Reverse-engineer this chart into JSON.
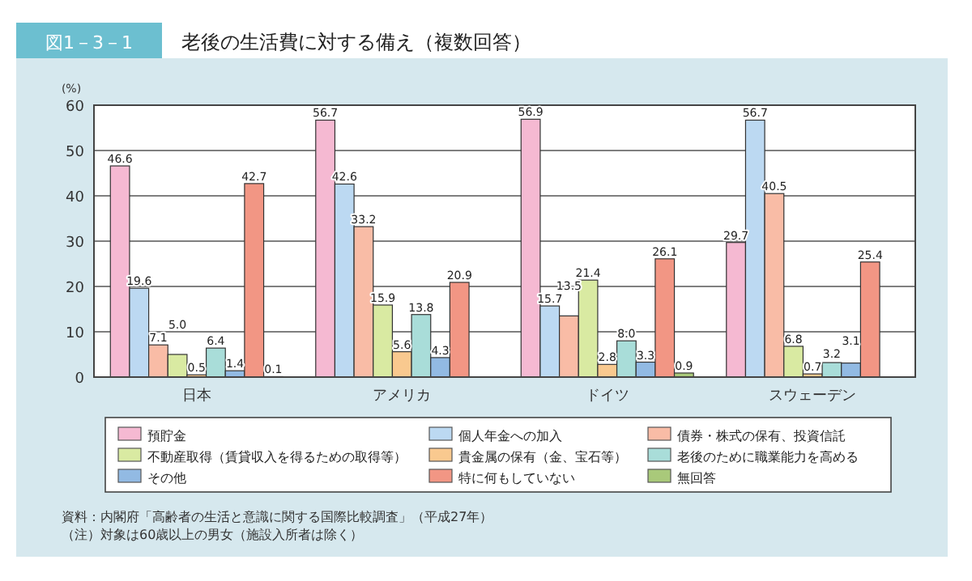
{
  "chart_data": {
    "type": "bar",
    "title": "老後の生活費に対する備え（複数回答）",
    "subtitle": "図1－3－1",
    "ylabel": "(%)",
    "categories": [
      "日本",
      "アメリカ",
      "ドイツ",
      "スウェーデン"
    ],
    "series": [
      {
        "name": "預貯金",
        "color": "#f5b9d2",
        "values": [
          46.6,
          56.7,
          56.9,
          29.7
        ],
        "value_labels": [
          "46.6",
          "56.7",
          "56.9",
          "29.7"
        ]
      },
      {
        "name": "個人年金への加入",
        "color": "#bcd9f2",
        "values": [
          19.6,
          42.6,
          15.7,
          56.7
        ],
        "value_labels": [
          "19.6",
          "42.6",
          "15.7",
          "56.7"
        ]
      },
      {
        "name": "債券・株式の保有、投資信託",
        "color": "#f9bca6",
        "values": [
          7.1,
          33.2,
          13.5,
          40.5
        ],
        "value_labels": [
          "7.1",
          "33.2",
          "13.5",
          "40.5"
        ]
      },
      {
        "name": "不動産取得（賃貸収入を得るための取得等）",
        "color": "#d9eaa2",
        "values": [
          5.0,
          15.9,
          21.4,
          6.8
        ],
        "value_labels": [
          "5.0",
          "15.9",
          "21.4",
          "6.8"
        ]
      },
      {
        "name": "貴金属の保有（金、宝石等）",
        "color": "#f9c98f",
        "values": [
          0.5,
          5.6,
          2.8,
          0.7
        ],
        "value_labels": [
          "0.5",
          "5.6",
          "2.8",
          "0.7"
        ]
      },
      {
        "name": "老後のために職業能力を高める",
        "color": "#a9ddd9",
        "values": [
          6.4,
          13.8,
          8.0,
          3.2
        ],
        "value_labels": [
          "6.4",
          "13.8",
          "8.0",
          "3.2"
        ]
      },
      {
        "name": "その他",
        "color": "#92bae3",
        "values": [
          1.4,
          4.3,
          3.3,
          3.1
        ],
        "value_labels": [
          "1.4",
          "4.3",
          "3.3",
          "3.1"
        ]
      },
      {
        "name": "特に何もしていない",
        "color": "#f29684",
        "values": [
          42.7,
          20.9,
          26.1,
          25.4
        ],
        "value_labels": [
          "42.7",
          "20.9",
          "26.1",
          "25.4"
        ]
      },
      {
        "name": "無回答",
        "color": "#a9c97a",
        "values": [
          0.1,
          null,
          0.9,
          null
        ],
        "value_labels": [
          "0.1",
          null,
          "0.9",
          null
        ]
      }
    ],
    "ylim": [
      0,
      60
    ],
    "yticks": [
      0,
      10,
      20,
      30,
      40,
      50,
      60
    ],
    "grid": "y",
    "legend": "bottom",
    "annotations": [
      "資料：内閣府「高齢者の生活と意識に関する国際比較調査」（平成27年）",
      "（注）対象は60歳以上の男女（施設入所者は除く）"
    ]
  }
}
